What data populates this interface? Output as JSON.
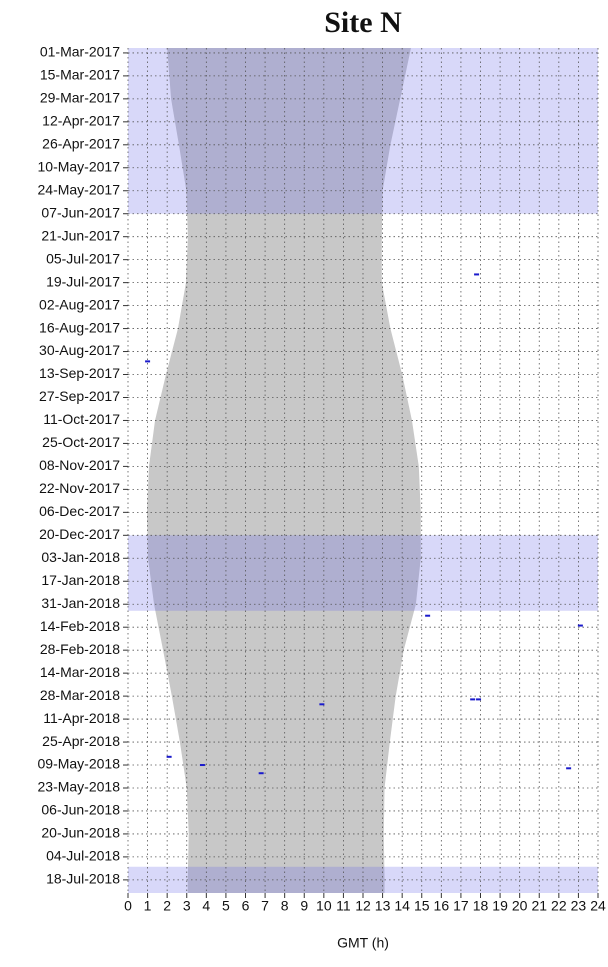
{
  "chart_data": {
    "type": "timeline",
    "title": "Site N",
    "xlabel": "GMT (h)",
    "xlim": [
      0,
      24
    ],
    "xticks": [
      0,
      1,
      2,
      3,
      4,
      5,
      6,
      7,
      8,
      9,
      10,
      11,
      12,
      13,
      14,
      15,
      16,
      17,
      18,
      19,
      20,
      21,
      22,
      23,
      24
    ],
    "ylim": [
      "2017-02-26",
      "2018-07-26"
    ],
    "yticks": [
      {
        "value": "2017-03-01",
        "label": "01-Mar-2017"
      },
      {
        "value": "2017-03-15",
        "label": "15-Mar-2017"
      },
      {
        "value": "2017-03-29",
        "label": "29-Mar-2017"
      },
      {
        "value": "2017-04-12",
        "label": "12-Apr-2017"
      },
      {
        "value": "2017-04-26",
        "label": "26-Apr-2017"
      },
      {
        "value": "2017-05-10",
        "label": "10-May-2017"
      },
      {
        "value": "2017-05-24",
        "label": "24-May-2017"
      },
      {
        "value": "2017-06-07",
        "label": "07-Jun-2017"
      },
      {
        "value": "2017-06-21",
        "label": "21-Jun-2017"
      },
      {
        "value": "2017-07-05",
        "label": "05-Jul-2017"
      },
      {
        "value": "2017-07-19",
        "label": "19-Jul-2017"
      },
      {
        "value": "2017-08-02",
        "label": "02-Aug-2017"
      },
      {
        "value": "2017-08-16",
        "label": "16-Aug-2017"
      },
      {
        "value": "2017-08-30",
        "label": "30-Aug-2017"
      },
      {
        "value": "2017-09-13",
        "label": "13-Sep-2017"
      },
      {
        "value": "2017-09-27",
        "label": "27-Sep-2017"
      },
      {
        "value": "2017-10-11",
        "label": "11-Oct-2017"
      },
      {
        "value": "2017-10-25",
        "label": "25-Oct-2017"
      },
      {
        "value": "2017-11-08",
        "label": "08-Nov-2017"
      },
      {
        "value": "2017-11-22",
        "label": "22-Nov-2017"
      },
      {
        "value": "2017-12-06",
        "label": "06-Dec-2017"
      },
      {
        "value": "2017-12-20",
        "label": "20-Dec-2017"
      },
      {
        "value": "2018-01-03",
        "label": "03-Jan-2018"
      },
      {
        "value": "2018-01-17",
        "label": "17-Jan-2018"
      },
      {
        "value": "2018-01-31",
        "label": "31-Jan-2018"
      },
      {
        "value": "2018-02-14",
        "label": "14-Feb-2018"
      },
      {
        "value": "2018-02-28",
        "label": "28-Feb-2018"
      },
      {
        "value": "2018-03-14",
        "label": "14-Mar-2018"
      },
      {
        "value": "2018-03-28",
        "label": "28-Mar-2018"
      },
      {
        "value": "2018-04-11",
        "label": "11-Apr-2018"
      },
      {
        "value": "2018-04-25",
        "label": "25-Apr-2018"
      },
      {
        "value": "2018-05-09",
        "label": "09-May-2018"
      },
      {
        "value": "2018-05-23",
        "label": "23-May-2018"
      },
      {
        "value": "2018-06-06",
        "label": "06-Jun-2018"
      },
      {
        "value": "2018-06-20",
        "label": "20-Jun-2018"
      },
      {
        "value": "2018-07-04",
        "label": "04-Jul-2018"
      },
      {
        "value": "2018-07-18",
        "label": "18-Jul-2018"
      }
    ],
    "grid": true,
    "bands": {
      "color": "#6464e6",
      "periods": [
        {
          "start": "2017-02-26",
          "end": "2017-06-07"
        },
        {
          "start": "2017-12-20",
          "end": "2018-02-04"
        },
        {
          "start": "2018-07-10",
          "end": "2018-07-26"
        }
      ]
    },
    "shade": {
      "color": "#c8c8c8",
      "dates": [
        "2017-02-26",
        "2017-03-29",
        "2017-04-26",
        "2017-05-24",
        "2017-06-21",
        "2017-07-19",
        "2017-08-16",
        "2017-09-13",
        "2017-10-11",
        "2017-11-08",
        "2017-12-06",
        "2018-01-03",
        "2018-01-31",
        "2018-02-28",
        "2018-03-28",
        "2018-04-25",
        "2018-05-23",
        "2018-06-20",
        "2018-07-18",
        "2018-07-26"
      ],
      "start": [
        2.0,
        2.2,
        2.6,
        2.98,
        3.06,
        2.96,
        2.55,
        1.94,
        1.38,
        1.07,
        0.97,
        1.02,
        1.33,
        1.79,
        2.24,
        2.65,
        3.0,
        3.1,
        3.05,
        3.05
      ],
      "end": [
        14.45,
        13.9,
        13.4,
        13.0,
        12.96,
        12.96,
        13.4,
        14.0,
        14.5,
        14.85,
        14.95,
        14.95,
        14.7,
        14.08,
        13.67,
        13.37,
        13.1,
        13.06,
        13.1,
        13.1
      ]
    },
    "detections": {
      "color": "#1a1acc",
      "dates": [
        "2017-07-14",
        "2017-09-05",
        "2018-02-07",
        "2018-02-13",
        "2018-03-30",
        "2018-03-30",
        "2018-04-02",
        "2018-05-04",
        "2018-05-09",
        "2018-05-11",
        "2018-05-14"
      ],
      "hours": [
        17.8,
        1.0,
        15.3,
        23.1,
        17.6,
        17.9,
        9.9,
        2.1,
        3.8,
        22.5,
        6.8
      ]
    }
  }
}
